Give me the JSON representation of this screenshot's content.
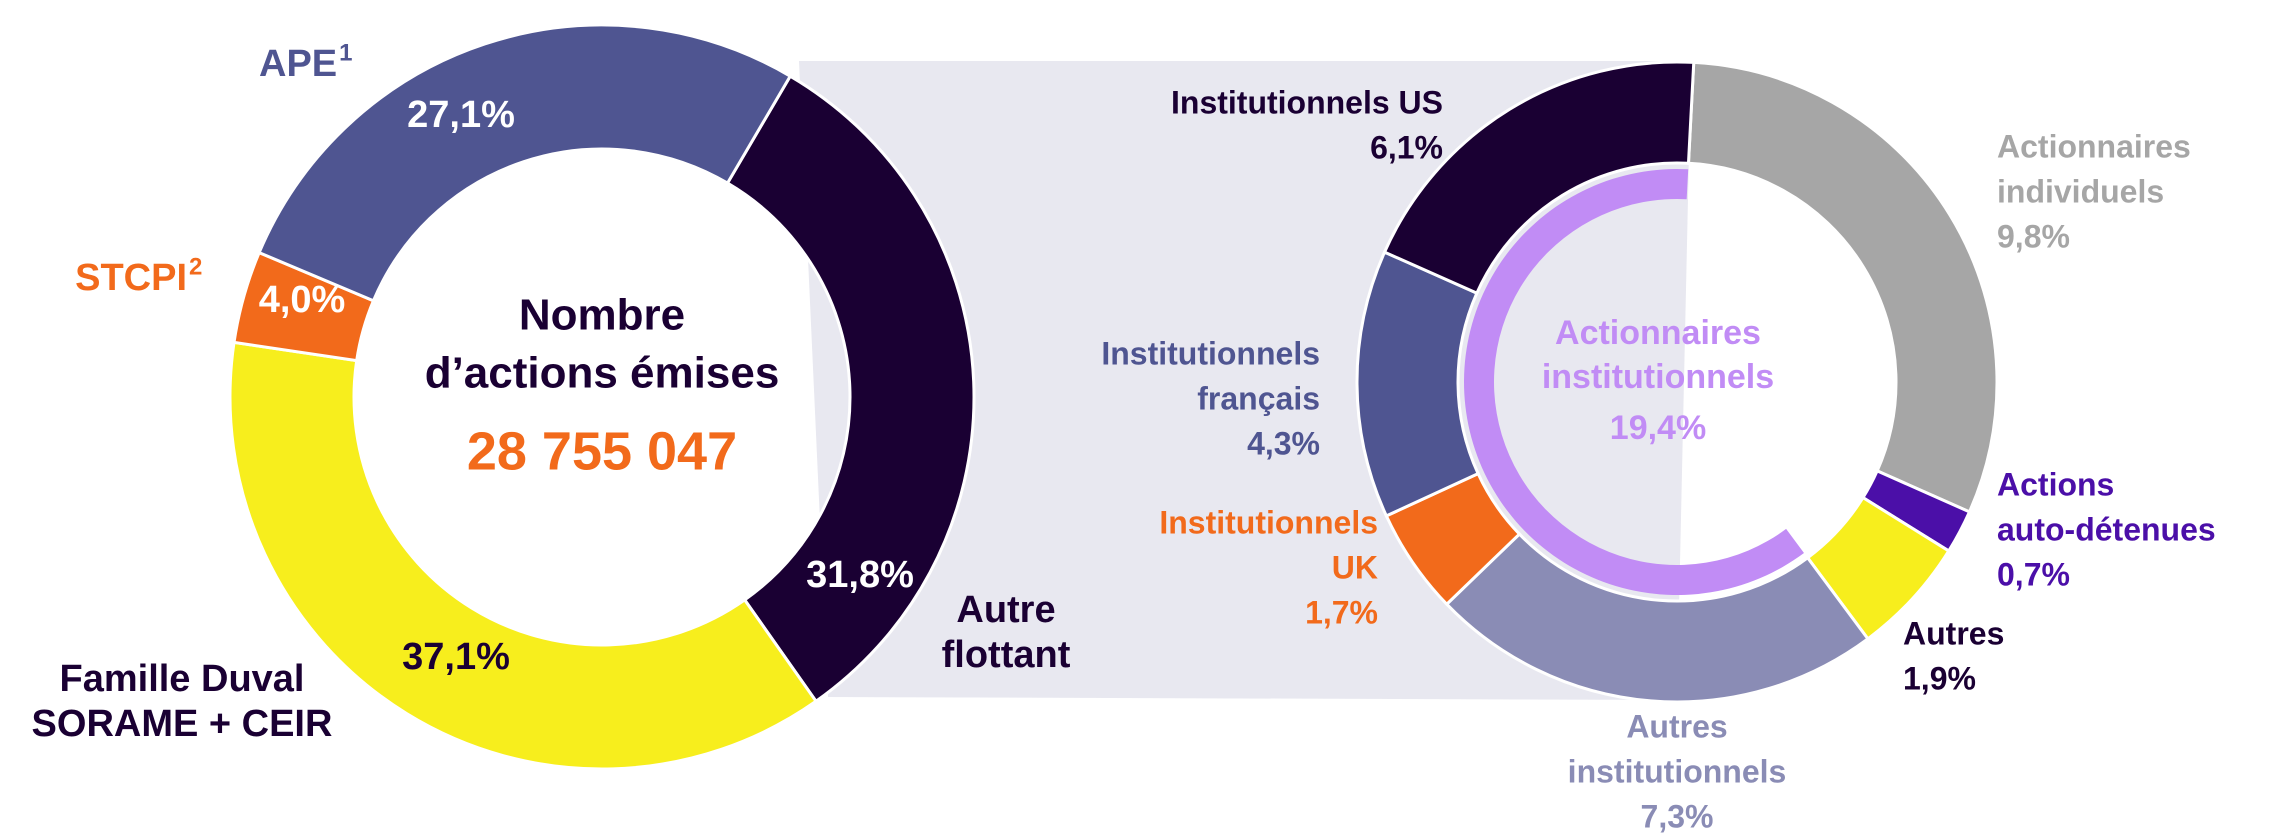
{
  "chart_data": [
    {
      "type": "donut",
      "center_title": [
        "Nombre",
        "d’actions émises"
      ],
      "center_value": "28 755 047",
      "labels": [
        [
          "Autre",
          "flottant"
        ],
        [
          "Famille Duval",
          "SORAME + CEIR"
        ],
        [
          "STCPI"
        ],
        [
          "APE"
        ]
      ],
      "label_notes": [
        null,
        null,
        "2",
        "1"
      ],
      "values": [
        31.8,
        37.1,
        4.0,
        27.1
      ],
      "value_labels": [
        "31,8%",
        "37,1%",
        "4,0%",
        "27,1%"
      ],
      "colors": [
        "#1a0033",
        "#f7ee1d",
        "#f26a1b",
        "#4f5591"
      ]
    },
    {
      "type": "donut",
      "labels": [
        [
          "Actionnaires",
          "individuels"
        ],
        [
          "Actions",
          "auto-détenues"
        ],
        [
          "Autres"
        ],
        [
          "Autres",
          "institutionnels"
        ],
        [
          "Institutionnels",
          "UK"
        ],
        [
          "Institutionnels",
          "français"
        ],
        [
          "Institutionnels US"
        ]
      ],
      "values": [
        9.8,
        0.7,
        1.9,
        7.3,
        1.7,
        4.3,
        6.1
      ],
      "value_labels": [
        "9,8%",
        "0,7%",
        "1,9%",
        "7,3%",
        "1,7%",
        "4,3%",
        "6,1%"
      ],
      "colors": [
        "#a6a6a6",
        "#4b0fa8",
        "#f7ee1d",
        "#8a8cb5",
        "#f26a1b",
        "#4f5591",
        "#1a0033"
      ],
      "inner_ring": {
        "name": [
          "Actionnaires",
          "institutionnels"
        ],
        "value": 19.4,
        "value_label": "19,4%",
        "color": "#c18cf5"
      }
    }
  ]
}
